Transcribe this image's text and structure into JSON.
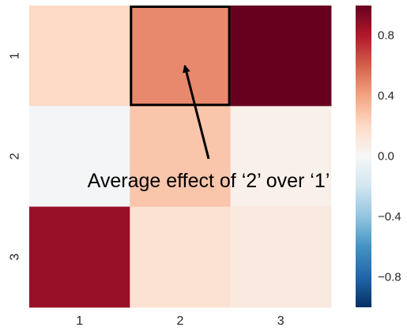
{
  "chart_data": {
    "type": "heatmap",
    "x_labels": [
      "1",
      "2",
      "3"
    ],
    "y_labels": [
      "1",
      "2",
      "3"
    ],
    "values": [
      [
        0.2,
        0.48,
        1.0
      ],
      [
        -0.02,
        0.28,
        0.05
      ],
      [
        0.87,
        0.15,
        0.1
      ]
    ],
    "colorscale": {
      "vmin": -1.0,
      "vmax": 1.0,
      "ticks": [
        -0.8,
        -0.4,
        0.0,
        0.4,
        0.8
      ],
      "tick_labels": [
        "−0.8",
        "−0.4",
        "0.0",
        "0.4",
        "0.8"
      ],
      "colormap": "RdBu_r",
      "stops": [
        {
          "v": -1.0,
          "color": "#053061"
        },
        {
          "v": -0.8,
          "color": "#2166ac"
        },
        {
          "v": -0.6,
          "color": "#4393c3"
        },
        {
          "v": -0.4,
          "color": "#92c5de"
        },
        {
          "v": -0.2,
          "color": "#d1e5f0"
        },
        {
          "v": 0.0,
          "color": "#f7f7f7"
        },
        {
          "v": 0.2,
          "color": "#fddbc7"
        },
        {
          "v": 0.4,
          "color": "#f4a582"
        },
        {
          "v": 0.6,
          "color": "#d6604d"
        },
        {
          "v": 0.8,
          "color": "#b2182b"
        },
        {
          "v": 1.0,
          "color": "#67001f"
        }
      ]
    },
    "highlight": {
      "row": 0,
      "col": 1,
      "color": "#000000"
    },
    "annotation": {
      "text": "Average effect of ‘2’ over ‘1’",
      "points_to": {
        "row": 0,
        "col": 1
      }
    }
  }
}
